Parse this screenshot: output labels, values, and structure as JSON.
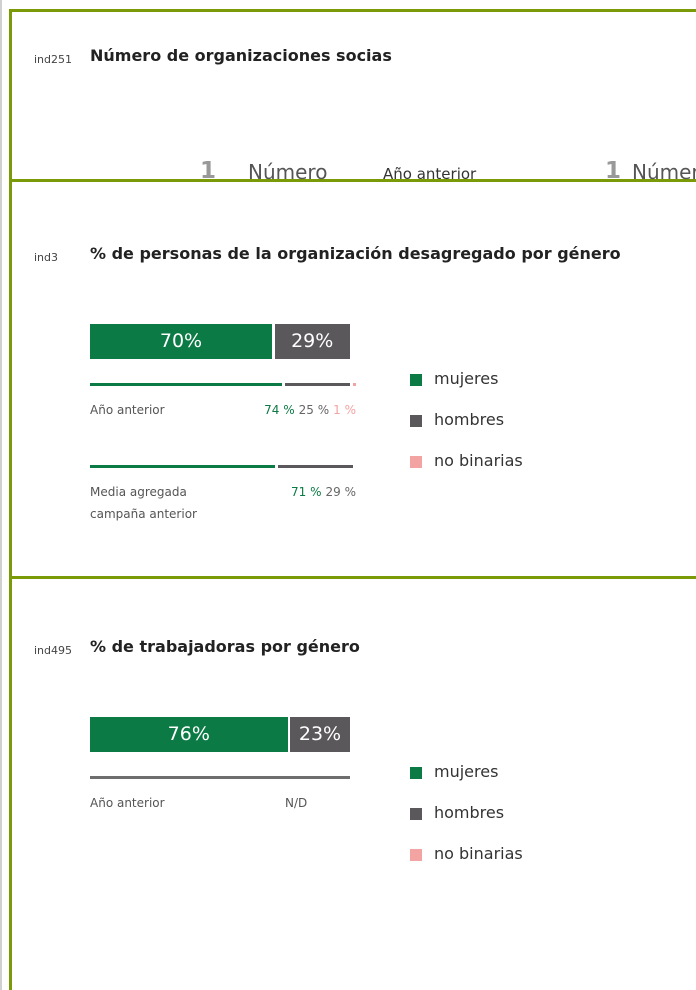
{
  "indicators": [
    {
      "code": "ind251",
      "title": "Número de organizaciones socias",
      "value": 1,
      "unit": "Número",
      "previous_label": "Año anterior",
      "previous_value": 1,
      "previous_unit": "Número"
    },
    {
      "code": "ind3",
      "title": "% de personas de la organización desagregado por género",
      "colors": [
        "#0b7a45",
        "#5b585c",
        "#f4a3a3"
      ],
      "legend": [
        "mujeres",
        "hombres",
        "no binarias"
      ],
      "values": [
        70,
        29
      ],
      "value_labels": [
        "70%",
        "29%"
      ],
      "comparisons": [
        {
          "label": "Año anterior",
          "values": [
            74,
            25,
            1
          ],
          "value_labels": [
            "74 %",
            "25 %",
            "1 %"
          ]
        },
        {
          "label": "Media agregada campaña anterior",
          "values": [
            71,
            29
          ],
          "value_labels": [
            "71 %",
            "29 %"
          ]
        }
      ]
    },
    {
      "code": "ind495",
      "title": "% de trabajadoras por género",
      "colors": [
        "#0b7a45",
        "#5b585c",
        "#f4a3a3"
      ],
      "legend": [
        "mujeres",
        "hombres",
        "no binarias"
      ],
      "values": [
        76,
        23
      ],
      "value_labels": [
        "76%",
        "23%"
      ],
      "comparisons": [
        {
          "label": "Año anterior",
          "value_label": "N/D"
        }
      ]
    }
  ]
}
